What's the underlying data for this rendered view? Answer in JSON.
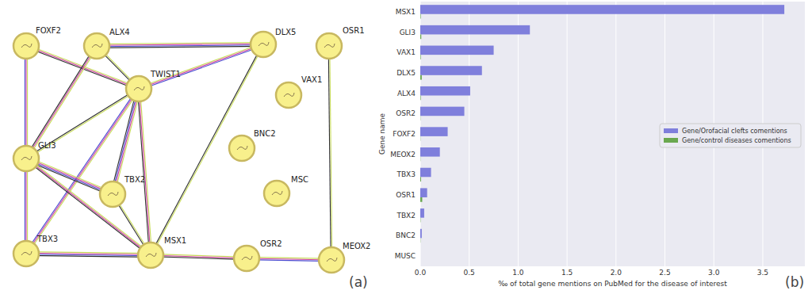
{
  "panel_labels": [
    "(a)",
    "(b)"
  ],
  "diagram": {
    "nodes": [
      "FOXF2",
      "ALX4",
      "TWIST1",
      "DLX5",
      "OSR1",
      "VAX1",
      "BNC2",
      "MSC",
      "GLI3",
      "TBX2",
      "TBX3",
      "MSX1",
      "OSR2",
      "MEOX2"
    ],
    "edges": [
      [
        0,
        2
      ],
      [
        0,
        8
      ],
      [
        1,
        2
      ],
      [
        1,
        3
      ],
      [
        1,
        8
      ],
      [
        2,
        3
      ],
      [
        2,
        8
      ],
      [
        2,
        9
      ],
      [
        2,
        11
      ],
      [
        2,
        10
      ],
      [
        3,
        11
      ],
      [
        8,
        9
      ],
      [
        8,
        11
      ],
      [
        8,
        10
      ],
      [
        9,
        11
      ],
      [
        10,
        11
      ],
      [
        11,
        12
      ],
      [
        12,
        13
      ],
      [
        4,
        13
      ]
    ]
  },
  "chart_data": {
    "type": "bar",
    "orientation": "horizontal",
    "categories": [
      "MSX1",
      "GLI3",
      "VAX1",
      "DLX5",
      "ALX4",
      "OSR2",
      "FOXF2",
      "MEOX2",
      "TBX3",
      "OSR1",
      "TBX2",
      "BNC2",
      "MUSC"
    ],
    "series": [
      {
        "name": "Gene/Orofacial clefts comentions",
        "color": "#7f7fdc",
        "values": [
          3.72,
          1.12,
          0.75,
          0.63,
          0.51,
          0.45,
          0.28,
          0.2,
          0.11,
          0.07,
          0.04,
          0.015,
          0
        ]
      },
      {
        "name": "Gene/control diseases comentions",
        "color": "#6aa84f",
        "values": [
          0.005,
          0.01,
          0.005,
          0.015,
          0.005,
          0.002,
          0.002,
          0.002,
          0.008,
          0.02,
          0.003,
          0.002,
          0
        ]
      }
    ],
    "xlabel": "‰ of total gene mentions on PubMed for the disease of interest",
    "ylabel": "Gene name",
    "xlim": [
      0,
      3.93
    ],
    "xticks": [
      {
        "value": 0,
        "label": "0.0"
      },
      0.5,
      {
        "value": 1,
        "label": "1.0"
      },
      1.5,
      {
        "value": 2,
        "label": "2.0"
      },
      2.5,
      {
        "value": 3,
        "label": "3.0"
      },
      3.5
    ],
    "grid": true,
    "legend": "right"
  }
}
